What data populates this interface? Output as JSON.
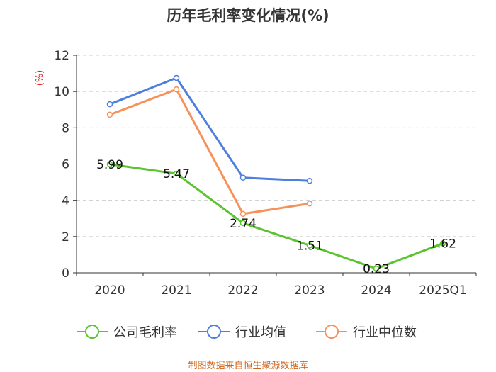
{
  "chart_data": {
    "type": "line",
    "title": "历年毛利率变化情况(%)",
    "ylabel": "(%)",
    "categories": [
      "2020",
      "2021",
      "2022",
      "2023",
      "2024",
      "2025Q1"
    ],
    "ylim": [
      0,
      12
    ],
    "yticks": [
      0,
      2,
      4,
      6,
      8,
      10,
      12
    ],
    "grid": true,
    "legend_position": "bottom",
    "series": [
      {
        "name": "公司毛利率",
        "color": "#5ac42e",
        "values": [
          5.99,
          5.47,
          2.74,
          1.51,
          0.23,
          1.62
        ],
        "labels": [
          "5.99",
          "5.47",
          "2.74",
          "1.51",
          "0.23",
          "1.62"
        ]
      },
      {
        "name": "行业均值",
        "color": "#4e7fdc",
        "values": [
          9.3,
          10.75,
          5.25,
          5.07,
          null,
          null
        ]
      },
      {
        "name": "行业中位数",
        "color": "#f7915a",
        "values": [
          8.72,
          10.12,
          3.25,
          3.82,
          null,
          null
        ]
      }
    ]
  },
  "source": "制图数据来自恒生聚源数据库"
}
